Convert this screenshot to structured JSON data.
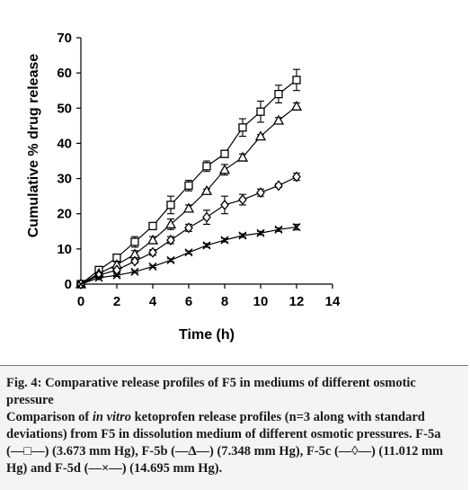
{
  "chart_data": {
    "type": "line",
    "title": "",
    "xlabel": "Time (h)",
    "ylabel": "Cumulative % drug release",
    "xlim": [
      0,
      14
    ],
    "ylim": [
      0,
      70
    ],
    "xticks": [
      "0",
      "2",
      "4",
      "6",
      "8",
      "10",
      "12",
      "14"
    ],
    "yticks": [
      "0",
      "10",
      "20",
      "30",
      "40",
      "50",
      "60",
      "70"
    ],
    "grid": false,
    "legend": "none",
    "error_bars": true,
    "series": [
      {
        "marker": "square",
        "x": [
          0,
          1,
          2,
          3,
          4,
          5,
          6,
          7,
          8,
          9,
          10,
          11,
          12
        ],
        "y": [
          0,
          4.0,
          7.5,
          12.0,
          16.5,
          22.5,
          28.0,
          33.5,
          37.0,
          44.5,
          49.0,
          54.0,
          58.0
        ],
        "err": [
          0,
          0.5,
          1.0,
          1.5,
          1.0,
          2.5,
          1.5,
          1.5,
          1.0,
          2.5,
          3.0,
          2.5,
          3.0
        ]
      },
      {
        "marker": "triangle",
        "x": [
          0,
          1,
          2,
          3,
          4,
          5,
          6,
          7,
          8,
          9,
          10,
          11,
          12
        ],
        "y": [
          0,
          3.0,
          5.5,
          8.5,
          12.5,
          17.0,
          21.5,
          26.5,
          32.5,
          36.0,
          42.0,
          46.5,
          50.5
        ],
        "err": [
          0,
          0.3,
          0.8,
          1.0,
          1.0,
          1.5,
          1.0,
          0.5,
          1.5,
          1.0,
          0.5,
          0.8,
          1.0
        ]
      },
      {
        "marker": "diamond",
        "x": [
          0,
          1,
          2,
          3,
          4,
          5,
          6,
          7,
          8,
          9,
          10,
          11,
          12
        ],
        "y": [
          0,
          2.5,
          4.0,
          6.5,
          9.0,
          12.5,
          16.0,
          19.0,
          22.5,
          24.0,
          26.0,
          28.0,
          30.5
        ],
        "err": [
          0,
          0.3,
          0.5,
          0.5,
          0.8,
          1.0,
          1.0,
          2.0,
          2.5,
          1.5,
          1.0,
          0.5,
          1.0
        ]
      },
      {
        "marker": "cross",
        "x": [
          0,
          1,
          2,
          3,
          4,
          5,
          6,
          7,
          8,
          9,
          10,
          11,
          12
        ],
        "y": [
          0,
          1.8,
          2.5,
          3.5,
          5.0,
          6.8,
          9.0,
          11.0,
          12.5,
          13.8,
          14.5,
          15.5,
          16.2
        ],
        "err": [
          0,
          0.2,
          0.3,
          0.3,
          0.3,
          0.4,
          0.4,
          0.5,
          0.5,
          0.5,
          0.5,
          0.5,
          0.8
        ]
      }
    ]
  },
  "caption": {
    "fig_title": "Fig. 4: Comparative release profiles of F5 in mediums of different osmotic pressure",
    "desc_before_italic": "Comparison of ",
    "desc_italic": "in vitro",
    "desc_after_italic": " ketoprofen release profiles (n=3 along with standard deviations) from F5 in dissolution medium of different osmotic pressures. F-5a (—□—) (3.673 mm Hg), F-5b (—Δ—) (7.348 mm Hg), F-5c (—◊—) (11.012 mm Hg) and F-5d (—×—) (14.695 mm Hg)."
  }
}
